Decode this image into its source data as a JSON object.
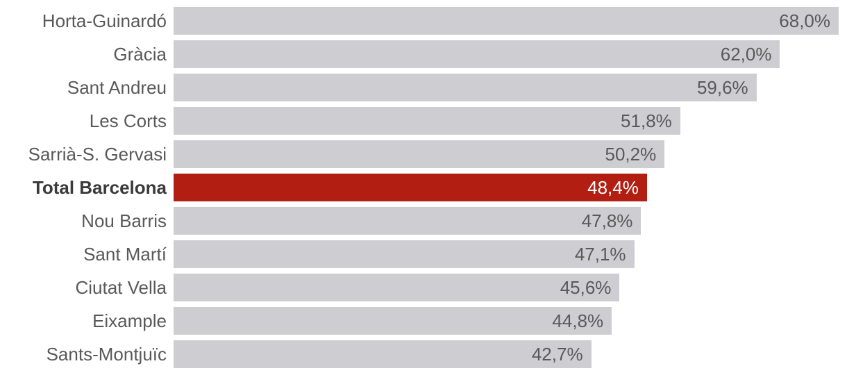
{
  "chart_data": {
    "type": "bar",
    "orientation": "horizontal",
    "title": "",
    "xlabel": "",
    "ylabel": "",
    "axis_max": 68.85,
    "grid": false,
    "legend": false,
    "bar_color": "#cecdd1",
    "highlight_color": "#b21f12",
    "label_color": "#595959",
    "highlight_label_color": "#3a3a3a",
    "value_text_color": "#595959",
    "highlight_value_text_color": "#ffffff",
    "categories": [
      "Horta-Guinardó",
      "Gràcia",
      "Sant Andreu",
      "Les Corts",
      "Sarrià-S. Gervasi",
      "Total Barcelona",
      "Nou Barris",
      "Sant Martí",
      "Ciutat Vella",
      "Eixample",
      "Sants-Montjuïc"
    ],
    "values": [
      68.0,
      62.0,
      59.6,
      51.8,
      50.2,
      48.4,
      47.8,
      47.1,
      45.6,
      44.8,
      42.7
    ],
    "highlight_index": 5,
    "rows": [
      {
        "label": "Horta-Guinardó",
        "value": 68.0,
        "display": "68,0%",
        "highlight": false
      },
      {
        "label": "Gràcia",
        "value": 62.0,
        "display": "62,0%",
        "highlight": false
      },
      {
        "label": "Sant Andreu",
        "value": 59.6,
        "display": "59,6%",
        "highlight": false
      },
      {
        "label": "Les Corts",
        "value": 51.8,
        "display": "51,8%",
        "highlight": false
      },
      {
        "label": "Sarrià-S. Gervasi",
        "value": 50.2,
        "display": "50,2%",
        "highlight": false
      },
      {
        "label": "Total Barcelona",
        "value": 48.4,
        "display": "48,4%",
        "highlight": true
      },
      {
        "label": "Nou Barris",
        "value": 47.8,
        "display": "47,8%",
        "highlight": false
      },
      {
        "label": "Sant Martí",
        "value": 47.1,
        "display": "47,1%",
        "highlight": false
      },
      {
        "label": "Ciutat Vella",
        "value": 45.6,
        "display": "45,6%",
        "highlight": false
      },
      {
        "label": "Eixample",
        "value": 44.8,
        "display": "44,8%",
        "highlight": false
      },
      {
        "label": "Sants-Montjuïc",
        "value": 42.7,
        "display": "42,7%",
        "highlight": false
      }
    ]
  }
}
